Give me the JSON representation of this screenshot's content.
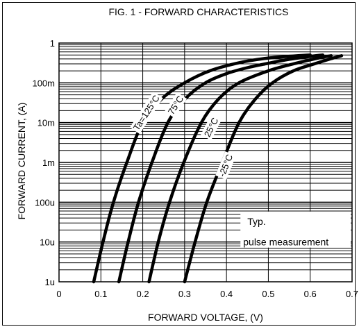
{
  "chart_data": {
    "type": "line",
    "title": "FIG. 1 - FORWARD CHARACTERISTICS",
    "xlabel": "FORWARD  VOLTAGE, (V)",
    "ylabel": "FORWARD  CURRENT, (A)",
    "x_scale": "linear",
    "y_scale": "log",
    "xlim": [
      0,
      0.7
    ],
    "ylim": [
      1e-06,
      1
    ],
    "x_ticks": [
      0,
      0.1,
      0.2,
      0.3,
      0.4,
      0.5,
      0.6,
      0.7
    ],
    "x_tick_labels": [
      "0",
      "0.1",
      "0.2",
      "0.3",
      "0.4",
      "0.5",
      "0.6",
      "0.7"
    ],
    "y_ticks": [
      1e-06,
      1e-05,
      0.0001,
      0.001,
      0.01,
      0.1,
      1
    ],
    "y_tick_labels": [
      "1u",
      "10u",
      "100u",
      "1m",
      "10m",
      "100m",
      "1"
    ],
    "grid": true,
    "series": [
      {
        "name": "Ta=125°C",
        "x": [
          0.083,
          0.105,
          0.13,
          0.162,
          0.2,
          0.246,
          0.3,
          0.36,
          0.43,
          0.5,
          0.56,
          0.6
        ],
        "y": [
          1e-06,
          1e-05,
          0.0001,
          0.001,
          0.01,
          0.04,
          0.1,
          0.2,
          0.32,
          0.42,
          0.47,
          0.5
        ]
      },
      {
        "name": "75°C",
        "x": [
          0.143,
          0.165,
          0.19,
          0.222,
          0.26,
          0.302,
          0.35,
          0.4,
          0.45,
          0.5,
          0.55,
          0.6,
          0.63
        ],
        "y": [
          1e-06,
          1e-05,
          0.0001,
          0.001,
          0.01,
          0.04,
          0.1,
          0.17,
          0.24,
          0.31,
          0.39,
          0.46,
          0.5
        ]
      },
      {
        "name": "25°C",
        "x": [
          0.215,
          0.237,
          0.264,
          0.298,
          0.34,
          0.382,
          0.43,
          0.5,
          0.56,
          0.62,
          0.65
        ],
        "y": [
          1e-06,
          1e-05,
          0.0001,
          0.001,
          0.01,
          0.04,
          0.1,
          0.2,
          0.3,
          0.42,
          0.48
        ]
      },
      {
        "name": "-25°C",
        "x": [
          0.3,
          0.325,
          0.353,
          0.39,
          0.43,
          0.47,
          0.51,
          0.56,
          0.61,
          0.655,
          0.675
        ],
        "y": [
          1e-06,
          1e-05,
          0.0001,
          0.001,
          0.01,
          0.04,
          0.1,
          0.2,
          0.3,
          0.42,
          0.48
        ]
      }
    ],
    "annotations": [
      {
        "text": "Typ.",
        "x": 0.44,
        "y": 3.32e-05
      },
      {
        "text": "pulse measurement",
        "x": 0.44,
        "y": 1e-05
      }
    ]
  },
  "colors": {
    "curve": "#000000",
    "grid": "#000000",
    "background": "#ffffff"
  }
}
